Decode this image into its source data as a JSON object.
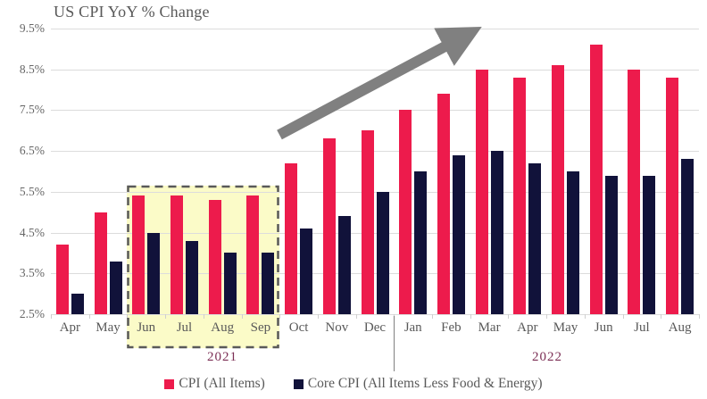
{
  "title": "US CPI YoY % Change",
  "chart_data": {
    "type": "bar",
    "title": "US CPI YoY % Change",
    "categories": [
      "Apr",
      "May",
      "Jun",
      "Jul",
      "Aug",
      "Sep",
      "Oct",
      "Nov",
      "Dec",
      "Jan",
      "Feb",
      "Mar",
      "Apr",
      "May",
      "Jun",
      "Jul",
      "Aug"
    ],
    "series": [
      {
        "name": "CPI (All Items)",
        "color": "#ED1B4C",
        "values": [
          4.2,
          5.0,
          5.4,
          5.4,
          5.3,
          5.4,
          6.2,
          6.8,
          7.0,
          7.5,
          7.9,
          8.5,
          8.3,
          8.6,
          9.1,
          8.5,
          8.3
        ]
      },
      {
        "name": "Core CPI (All Items Less Food & Energy)",
        "color": "#11123A",
        "values": [
          3.0,
          3.8,
          4.5,
          4.3,
          4.0,
          4.0,
          4.6,
          4.9,
          5.5,
          6.0,
          6.4,
          6.5,
          6.2,
          6.0,
          5.9,
          5.9,
          6.3
        ]
      }
    ],
    "xlabel": "",
    "ylabel": "",
    "ylim": [
      2.5,
      9.5
    ],
    "ytick_values": [
      2.5,
      3.5,
      4.5,
      5.5,
      6.5,
      7.5,
      8.5,
      9.5
    ],
    "ytick_labels": [
      "2.5%",
      "3.5%",
      "4.5%",
      "5.5%",
      "6.5%",
      "7.5%",
      "8.5%",
      "9.5%"
    ],
    "grid": true,
    "legend_position": "bottom",
    "year_groups": [
      {
        "label": "2021",
        "start_index": 0,
        "end_index": 8
      },
      {
        "label": "2022",
        "start_index": 9,
        "end_index": 16
      }
    ],
    "annotations": {
      "highlight_region": {
        "months": [
          "Jun",
          "Jul",
          "Aug",
          "Sep"
        ],
        "year": "2021",
        "start_index": 2,
        "end_index": 5,
        "fill": "#FBFBC8",
        "border": "#595959"
      },
      "trend_arrow": {
        "direction": "up-right",
        "color": "#808080"
      },
      "year_divider_after_index": 8
    }
  },
  "colors": {
    "background": "#FFFFFF",
    "gridline": "#DCDCDC",
    "title_text": "#595959",
    "axis_text": "#666666",
    "year_text": "#7C2F55"
  }
}
